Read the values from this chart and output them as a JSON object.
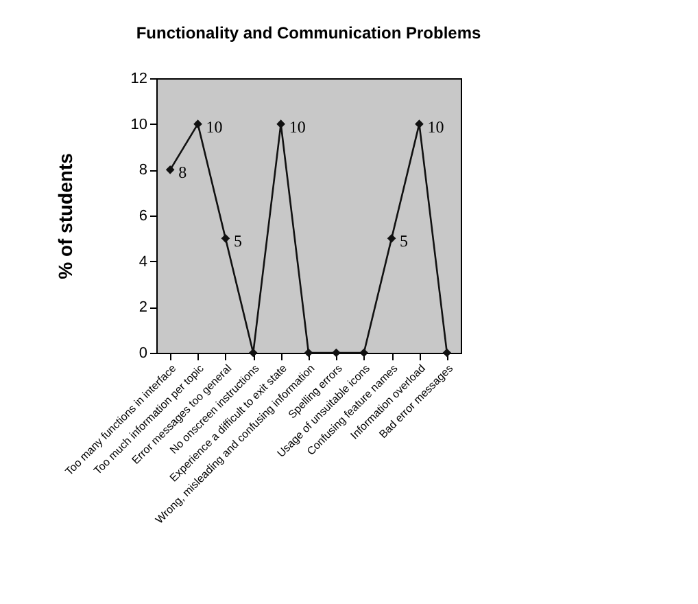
{
  "chart_data": {
    "type": "line",
    "title": "Functionality and Communication Problems",
    "ylabel": "% of students",
    "categories": [
      "Too many functions in interface",
      "Too much information per topic",
      "Error messages too general",
      "No onscreen instructions",
      "Experience a difficult to exit state",
      "Wrong, misleading and confusing information",
      "Spelling errors",
      "Usage of unsuitable icons",
      "Confusing feature names",
      "Information overload",
      "Bad error messages"
    ],
    "values": [
      8,
      10,
      5,
      0,
      10,
      0,
      0,
      0,
      5,
      10,
      0
    ],
    "value_labels": [
      "8",
      "10",
      "5",
      null,
      "10",
      null,
      null,
      null,
      "5",
      "10",
      null
    ],
    "color": "#111111",
    "marker": "diamond",
    "ylim": [
      0,
      12
    ],
    "yticks": [
      0,
      2,
      4,
      6,
      8,
      10,
      12
    ],
    "grid": false
  }
}
